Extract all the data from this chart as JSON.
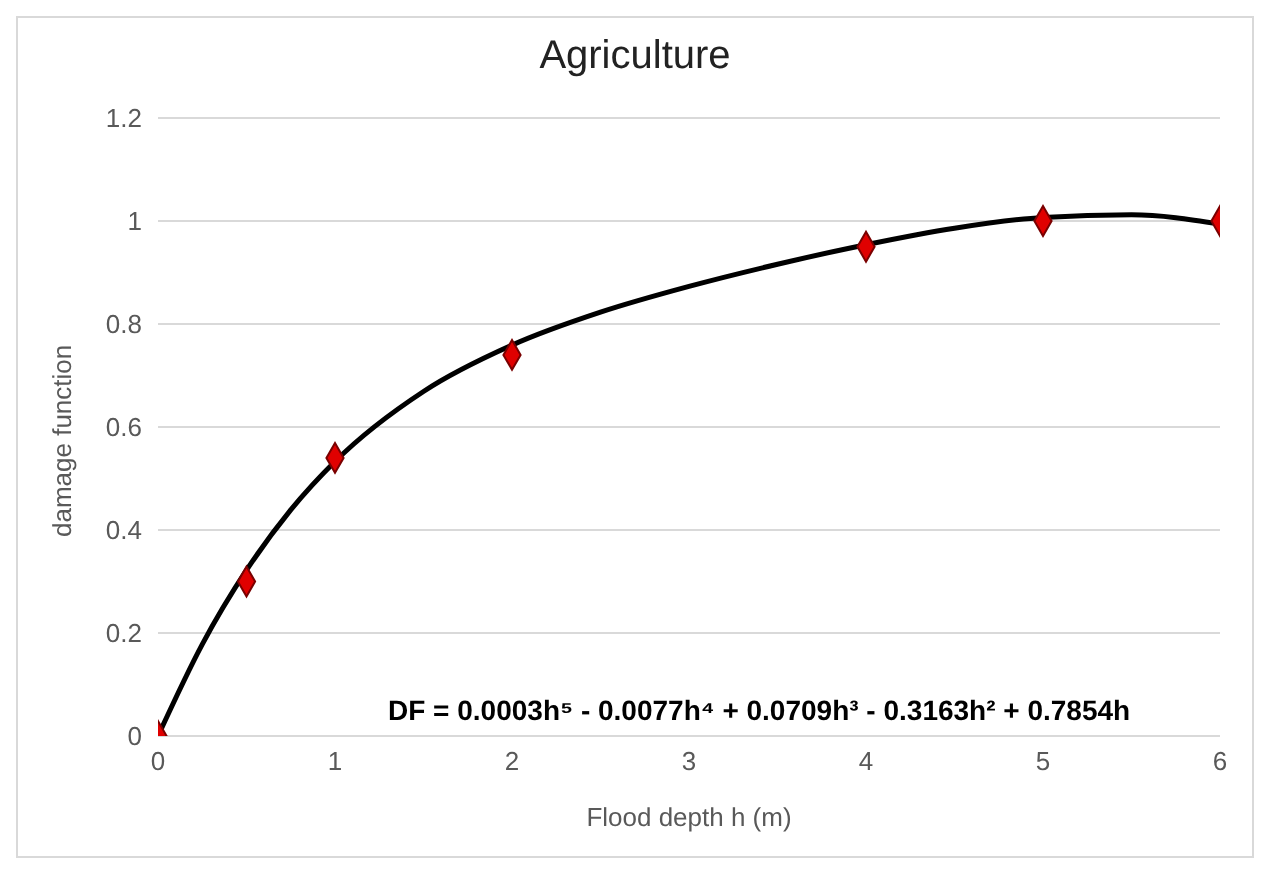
{
  "chart_data": {
    "type": "scatter",
    "title": "Agriculture",
    "xlabel": "Flood depth h (m)",
    "ylabel": "damage function",
    "xlim": [
      0,
      6
    ],
    "xticks": [
      0,
      1,
      2,
      3,
      4,
      5,
      6
    ],
    "ylim": [
      0,
      1.2
    ],
    "yticks": [
      0,
      0.2,
      0.4,
      0.6,
      0.8,
      1,
      1.2
    ],
    "grid": "y",
    "series": [
      {
        "type": "line",
        "color": "#000000",
        "marker": "none",
        "line_style": "solid",
        "x": [
          0,
          0.25,
          0.5,
          0.75,
          1,
          1.5,
          2,
          2.5,
          3,
          3.5,
          4,
          4.5,
          5,
          5.5,
          6
        ],
        "values": [
          0,
          0.178,
          0.322,
          0.439,
          0.533,
          0.669,
          0.759,
          0.823,
          0.873,
          0.916,
          0.954,
          0.986,
          1.007,
          1.012,
          0.994
        ]
      },
      {
        "type": "scatter",
        "color": "#e00000",
        "marker": "diamond",
        "x": [
          0,
          0.5,
          1,
          2,
          4,
          5,
          6
        ],
        "values": [
          0,
          0.3,
          0.54,
          0.74,
          0.95,
          1,
          1
        ]
      }
    ],
    "annotations": [
      "DF = 0.0003h⁵ - 0.0077h⁴ + 0.0709h³ - 0.3163h² + 0.7854h"
    ]
  }
}
